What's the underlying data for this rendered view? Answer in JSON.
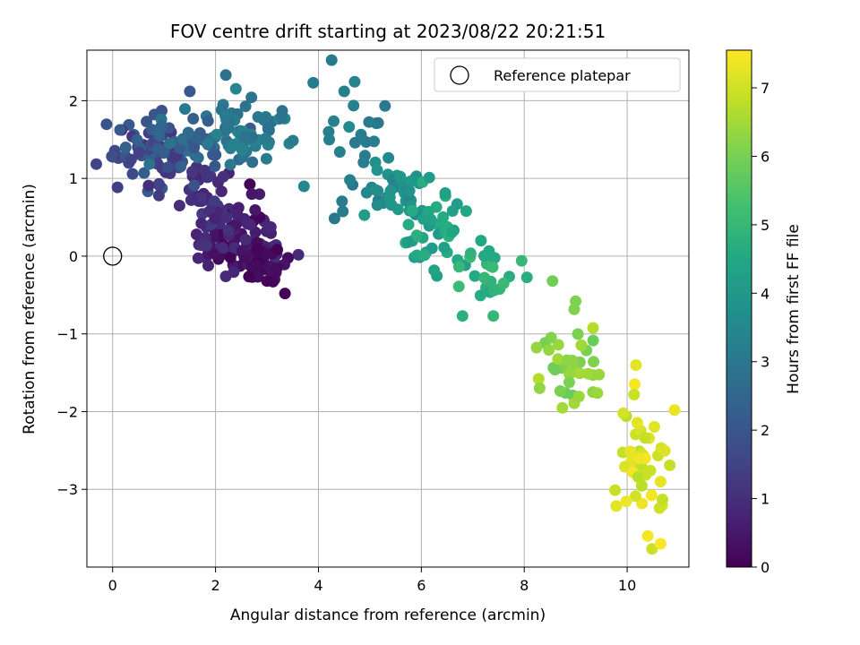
{
  "chart_data": {
    "type": "scatter",
    "title": "FOV centre drift starting at 2023/08/22 20:21:51",
    "xlabel": "Angular distance from reference (arcmin)",
    "ylabel": "Rotation from reference (arcmin)",
    "xlim": [
      -0.5,
      11.2
    ],
    "ylim": [
      -4.0,
      2.65
    ],
    "xticks": [
      0,
      2,
      4,
      6,
      8,
      10
    ],
    "yticks": [
      -3,
      -2,
      -1,
      0,
      1,
      2
    ],
    "xtick_labels": [
      "0",
      "2",
      "4",
      "6",
      "8",
      "10"
    ],
    "ytick_labels": [
      "−3",
      "−2",
      "−1",
      "0",
      "1",
      "2"
    ],
    "grid": true,
    "legend": {
      "placement": "top-right",
      "entries": [
        {
          "label": "Reference platepar",
          "marker": "open-circle"
        }
      ]
    },
    "colorbar": {
      "label": "Hours from first FF file",
      "range": [
        0,
        7.55
      ],
      "ticks": [
        0,
        1,
        2,
        3,
        4,
        5,
        6,
        7
      ],
      "tick_labels": [
        "0",
        "1",
        "2",
        "3",
        "4",
        "5",
        "6",
        "7"
      ],
      "colormap": "viridis"
    },
    "reference_point": {
      "x": 0,
      "y": 0
    },
    "clusters": [
      {
        "hours_range": [
          0.0,
          1.0
        ],
        "center": [
          2.5,
          0.2
        ],
        "spread": [
          0.4,
          0.25
        ],
        "count": 90
      },
      {
        "hours_range": [
          0.0,
          0.4
        ],
        "center": [
          2.9,
          -0.05
        ],
        "spread": [
          0.22,
          0.18
        ],
        "count": 30
      },
      {
        "hours_range": [
          0.7,
          1.3
        ],
        "center": [
          1.9,
          0.75
        ],
        "spread": [
          0.25,
          0.3
        ],
        "count": 35
      },
      {
        "hours_range": [
          1.0,
          2.3
        ],
        "center": [
          0.8,
          1.35
        ],
        "spread": [
          0.45,
          0.2
        ],
        "count": 85
      },
      {
        "hours_range": [
          2.0,
          3.0
        ],
        "center": [
          1.7,
          1.5
        ],
        "spread": [
          0.5,
          0.15
        ],
        "count": 40
      },
      {
        "hours_range": [
          2.7,
          3.4
        ],
        "center": [
          2.7,
          1.6
        ],
        "spread": [
          0.45,
          0.2
        ],
        "count": 55
      },
      {
        "hours_range": [
          3.0,
          3.6
        ],
        "center": [
          4.6,
          1.3
        ],
        "spread": [
          0.35,
          0.35
        ],
        "count": 25
      },
      {
        "hours_range": [
          3.3,
          4.2
        ],
        "center": [
          5.5,
          0.8
        ],
        "spread": [
          0.35,
          0.22
        ],
        "count": 40
      },
      {
        "hours_range": [
          4.0,
          4.8
        ],
        "center": [
          6.3,
          0.35
        ],
        "spread": [
          0.35,
          0.22
        ],
        "count": 40
      },
      {
        "hours_range": [
          4.5,
          5.1
        ],
        "center": [
          7.1,
          -0.2
        ],
        "spread": [
          0.3,
          0.2
        ],
        "count": 25
      },
      {
        "hours_range": [
          5.8,
          6.7
        ],
        "center": [
          8.9,
          -1.4
        ],
        "spread": [
          0.3,
          0.35
        ],
        "count": 40
      },
      {
        "hours_range": [
          6.7,
          7.5
        ],
        "center": [
          10.3,
          -2.7
        ],
        "spread": [
          0.2,
          0.45
        ],
        "count": 45
      }
    ],
    "points": [
      {
        "x": 2.2,
        "y": 2.33,
        "hours": 2.8
      },
      {
        "x": 1.5,
        "y": 2.12,
        "hours": 2.1
      },
      {
        "x": 3.9,
        "y": 2.23,
        "hours": 3.1
      },
      {
        "x": 4.2,
        "y": 1.6,
        "hours": 3.2
      },
      {
        "x": 4.5,
        "y": 2.12,
        "hours": 3.3
      },
      {
        "x": 3.35,
        "y": -0.48,
        "hours": 0.05
      },
      {
        "x": 3.0,
        "y": -0.32,
        "hours": 0.1
      },
      {
        "x": 8.55,
        "y": -0.32,
        "hours": 5.9
      },
      {
        "x": 9.0,
        "y": -0.58,
        "hours": 6.1
      },
      {
        "x": 8.3,
        "y": -1.7,
        "hours": 6.3
      },
      {
        "x": 6.8,
        "y": -0.77,
        "hours": 4.8
      },
      {
        "x": 7.4,
        "y": -0.77,
        "hours": 5.0
      },
      {
        "x": 7.6,
        "y": -0.35,
        "hours": 5.1
      },
      {
        "x": 10.65,
        "y": -3.7,
        "hours": 7.5
      },
      {
        "x": 10.4,
        "y": -3.6,
        "hours": 7.45
      },
      {
        "x": 10.65,
        "y": -2.9,
        "hours": 7.3
      },
      {
        "x": 1.3,
        "y": 0.65,
        "hours": 1.0
      },
      {
        "x": 0.9,
        "y": 0.78,
        "hours": 1.3
      }
    ]
  }
}
